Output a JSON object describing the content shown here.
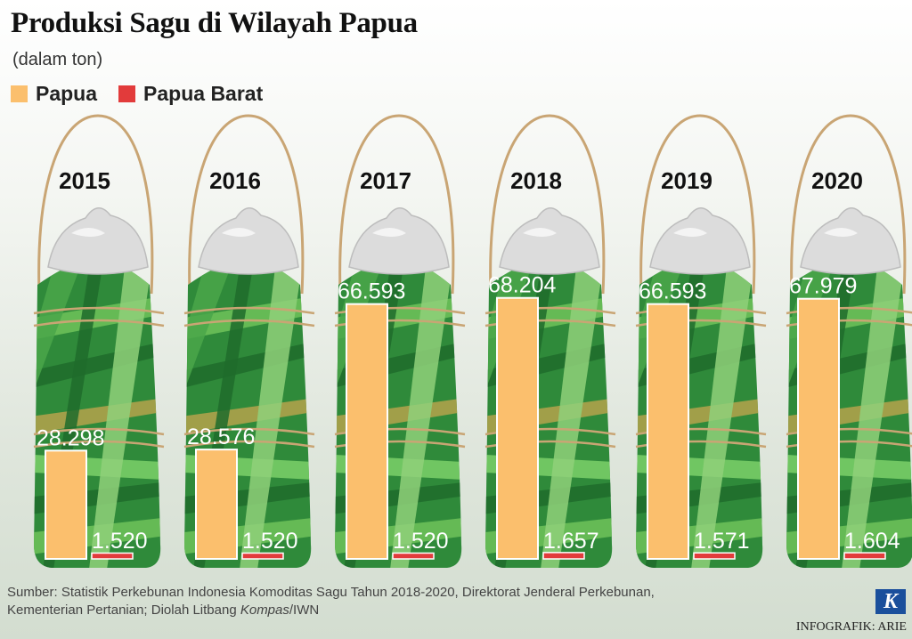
{
  "header": {
    "title": "Produksi Sagu di Wilayah Papua",
    "subtitle": "(dalam ton)"
  },
  "legend": [
    {
      "label": "Papua",
      "color": "#fbbf6d"
    },
    {
      "label": "Papua Barat",
      "color": "#e23b3b"
    }
  ],
  "chart_data": {
    "type": "bar",
    "categories": [
      "2015",
      "2016",
      "2017",
      "2018",
      "2019",
      "2020"
    ],
    "series": [
      {
        "name": "Papua",
        "color": "#fbbf6d",
        "values": [
          28298,
          28576,
          66593,
          68204,
          66593,
          67979
        ],
        "labels": [
          "28.298",
          "28.576",
          "66.593",
          "68.204",
          "66.593",
          "67.979"
        ]
      },
      {
        "name": "Papua Barat",
        "color": "#e23b3b",
        "values": [
          1520,
          1520,
          1520,
          1657,
          1571,
          1604
        ],
        "labels": [
          "1.520",
          "1.520",
          "1.520",
          "1.657",
          "1.571",
          "1.604"
        ]
      }
    ],
    "ylim": [
      0,
      70000
    ],
    "legend_position": "top-left"
  },
  "source": {
    "line1": "Sumber: Statistik Perkebunan Indonesia Komoditas Sagu Tahun 2018-2020, Direktorat Jenderal Perkebunan,",
    "line2_prefix": "Kementerian Pertanian; Diolah Litbang ",
    "line2_italic": "Kompas",
    "line2_suffix": "/IWN"
  },
  "logo_letter": "K",
  "credit": "INFOGRAFIK: ARIE"
}
